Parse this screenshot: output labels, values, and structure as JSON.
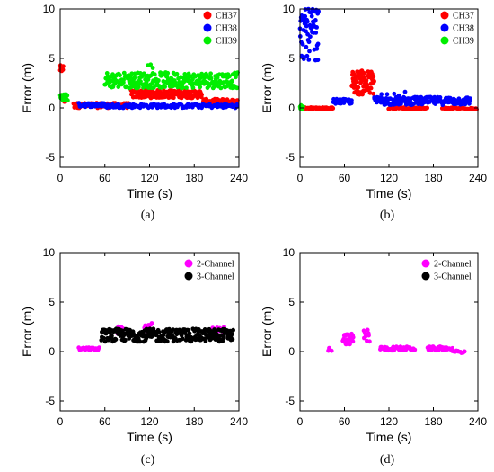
{
  "chart_data": [
    {
      "type": "scatter",
      "panel_label": "(a)",
      "xlabel": "Time  (s)",
      "ylabel": "Error  (m)",
      "xlim": [
        0,
        240
      ],
      "ylim": [
        -6,
        10
      ],
      "xticks": [
        0,
        60,
        120,
        180,
        240
      ],
      "yticks": [
        -5,
        0,
        5,
        10
      ],
      "grid": false,
      "legend_position": "top-right",
      "series": [
        {
          "name": "CH37",
          "color": "#ff0000",
          "segments": [
            {
              "x": [
                0,
                4
              ],
              "y": [
                3.6,
                4.3
              ],
              "n": 14
            },
            {
              "x": [
                5,
                8
              ],
              "y": [
                0.5,
                1.2
              ],
              "n": 8
            },
            {
              "x": [
                18,
                92
              ],
              "y": [
                0.0,
                0.5
              ],
              "n": 90
            },
            {
              "x": [
                95,
                190
              ],
              "y": [
                1.0,
                1.8
              ],
              "n": 160
            },
            {
              "x": [
                192,
                238
              ],
              "y": [
                0.3,
                0.9
              ],
              "n": 60
            }
          ]
        },
        {
          "name": "CH38",
          "color": "#0000ff",
          "segments": [
            {
              "x": [
                25,
                60
              ],
              "y": [
                0.1,
                0.5
              ],
              "n": 40
            },
            {
              "x": [
                60,
                238
              ],
              "y": [
                0.0,
                0.4
              ],
              "n": 140
            }
          ]
        },
        {
          "name": "CH39",
          "color": "#00ee00",
          "segments": [
            {
              "x": [
                0,
                10
              ],
              "y": [
                0.7,
                1.4
              ],
              "n": 22
            },
            {
              "x": [
                60,
                238
              ],
              "y": [
                2.0,
                3.6
              ],
              "n": 260
            },
            {
              "x": [
                118,
                124
              ],
              "y": [
                4.0,
                4.4
              ],
              "n": 3
            }
          ]
        }
      ]
    },
    {
      "type": "scatter",
      "panel_label": "(b)",
      "xlabel": "Time  (s)",
      "ylabel": "Error  (m)",
      "xlim": [
        0,
        240
      ],
      "ylim": [
        -6,
        10
      ],
      "xticks": [
        0,
        60,
        120,
        180,
        240
      ],
      "yticks": [
        -5,
        0,
        5,
        10
      ],
      "grid": false,
      "legend_position": "top-right",
      "series": [
        {
          "name": "CH37",
          "color": "#ff0000",
          "segments": [
            {
              "x": [
                5,
                45
              ],
              "y": [
                -0.15,
                0.05
              ],
              "n": 40
            },
            {
              "x": [
                70,
                100
              ],
              "y": [
                1.3,
                3.8
              ],
              "n": 80
            },
            {
              "x": [
                120,
                172
              ],
              "y": [
                -0.15,
                0.05
              ],
              "n": 50
            },
            {
              "x": [
                192,
                238
              ],
              "y": [
                -0.15,
                0.05
              ],
              "n": 45
            }
          ]
        },
        {
          "name": "CH38",
          "color": "#0000ff",
          "segments": [
            {
              "x": [
                0,
                25
              ],
              "y": [
                4.8,
                10.0
              ],
              "n": 60
            },
            {
              "x": [
                45,
                70
              ],
              "y": [
                0.4,
                0.9
              ],
              "n": 30
            },
            {
              "x": [
                100,
                230
              ],
              "y": [
                0.3,
                1.1
              ],
              "n": 160
            },
            {
              "x": [
                110,
                140
              ],
              "y": [
                1.2,
                1.7
              ],
              "n": 5
            }
          ]
        },
        {
          "name": "CH39",
          "color": "#00ee00",
          "segments": [
            {
              "x": [
                0,
                4
              ],
              "y": [
                -0.2,
                0.3
              ],
              "n": 8
            }
          ]
        }
      ]
    },
    {
      "type": "scatter",
      "panel_label": "(c)",
      "xlabel": "Time  (s)",
      "ylabel": "Error  (m)",
      "xlim": [
        0,
        240
      ],
      "ylim": [
        -6,
        10
      ],
      "xticks": [
        0,
        60,
        120,
        180,
        240
      ],
      "yticks": [
        -5,
        0,
        5,
        10
      ],
      "grid": false,
      "legend_position": "top-right",
      "series": [
        {
          "name": "2-Channel",
          "color": "#ff00ff",
          "segments": [
            {
              "x": [
                25,
                52
              ],
              "y": [
                0.1,
                0.4
              ],
              "n": 30
            },
            {
              "x": [
                75,
                85
              ],
              "y": [
                1.8,
                2.6
              ],
              "n": 12
            },
            {
              "x": [
                113,
                125
              ],
              "y": [
                2.0,
                2.9
              ],
              "n": 14
            },
            {
              "x": [
                205,
                222
              ],
              "y": [
                1.8,
                2.6
              ],
              "n": 12
            }
          ]
        },
        {
          "name": "3-Channel",
          "color": "#000000",
          "segments": [
            {
              "x": [
                55,
                232
              ],
              "y": [
                1.0,
                2.3
              ],
              "n": 280
            }
          ]
        }
      ]
    },
    {
      "type": "scatter",
      "panel_label": "(d)",
      "xlabel": "Time  (s)",
      "ylabel": "Error  (m)",
      "xlim": [
        0,
        240
      ],
      "ylim": [
        -6,
        10
      ],
      "xticks": [
        0,
        60,
        120,
        180,
        240
      ],
      "yticks": [
        -5,
        0,
        5,
        10
      ],
      "grid": false,
      "legend_position": "top-right",
      "series": [
        {
          "name": "2-Channel",
          "color": "#ff00ff",
          "segments": [
            {
              "x": [
                38,
                42
              ],
              "y": [
                0.0,
                0.4
              ],
              "n": 3
            },
            {
              "x": [
                58,
                72
              ],
              "y": [
                0.7,
                1.8
              ],
              "n": 25
            },
            {
              "x": [
                86,
                94
              ],
              "y": [
                0.9,
                2.3
              ],
              "n": 10
            },
            {
              "x": [
                108,
                155
              ],
              "y": [
                0.1,
                0.5
              ],
              "n": 40
            },
            {
              "x": [
                172,
                205
              ],
              "y": [
                0.1,
                0.5
              ],
              "n": 25
            },
            {
              "x": [
                205,
                222
              ],
              "y": [
                -0.15,
                0.1
              ],
              "n": 10
            }
          ]
        },
        {
          "name": "3-Channel",
          "color": "#000000",
          "segments": []
        }
      ]
    }
  ]
}
